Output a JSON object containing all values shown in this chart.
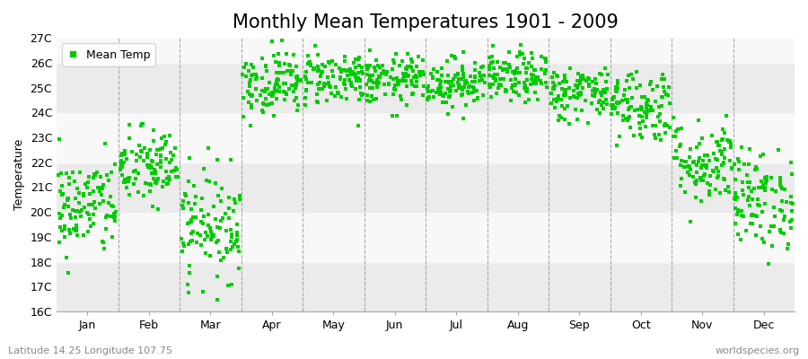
{
  "title": "Monthly Mean Temperatures 1901 - 2009",
  "ylabel": "Temperature",
  "dot_color": "#00cc00",
  "dot_size": 5,
  "marker": "s",
  "bg_color": "#ffffff",
  "plot_bg_color": "#ffffff",
  "stripe_colors": [
    "#ebebeb",
    "#f8f8f8"
  ],
  "month_labels": [
    "Jan",
    "Feb",
    "Mar",
    "Apr",
    "May",
    "Jun",
    "Jul",
    "Aug",
    "Sep",
    "Oct",
    "Nov",
    "Dec"
  ],
  "ylim": [
    16,
    27
  ],
  "yticks": [
    16,
    17,
    18,
    19,
    20,
    21,
    22,
    23,
    24,
    25,
    26,
    27
  ],
  "ytick_labels": [
    "16C",
    "17C",
    "18C",
    "19C",
    "20C",
    "21C",
    "22C",
    "23C",
    "24C",
    "25C",
    "26C",
    "27C"
  ],
  "legend_label": "Mean Temp",
  "footnote_left": "Latitude 14.25 Longitude 107.75",
  "footnote_right": "worldspecies.org",
  "monthly_means": [
    20.2,
    21.8,
    19.5,
    25.2,
    25.4,
    25.3,
    25.2,
    25.4,
    24.8,
    24.3,
    22.0,
    20.5
  ],
  "monthly_stds": [
    1.0,
    0.8,
    1.1,
    0.65,
    0.55,
    0.5,
    0.5,
    0.5,
    0.55,
    0.75,
    0.85,
    1.0
  ],
  "n_years": 109,
  "title_fontsize": 15,
  "label_fontsize": 9,
  "tick_fontsize": 9,
  "footnote_fontsize": 8,
  "dashed_line_color": "#888888",
  "dashed_line_alpha": 0.7
}
